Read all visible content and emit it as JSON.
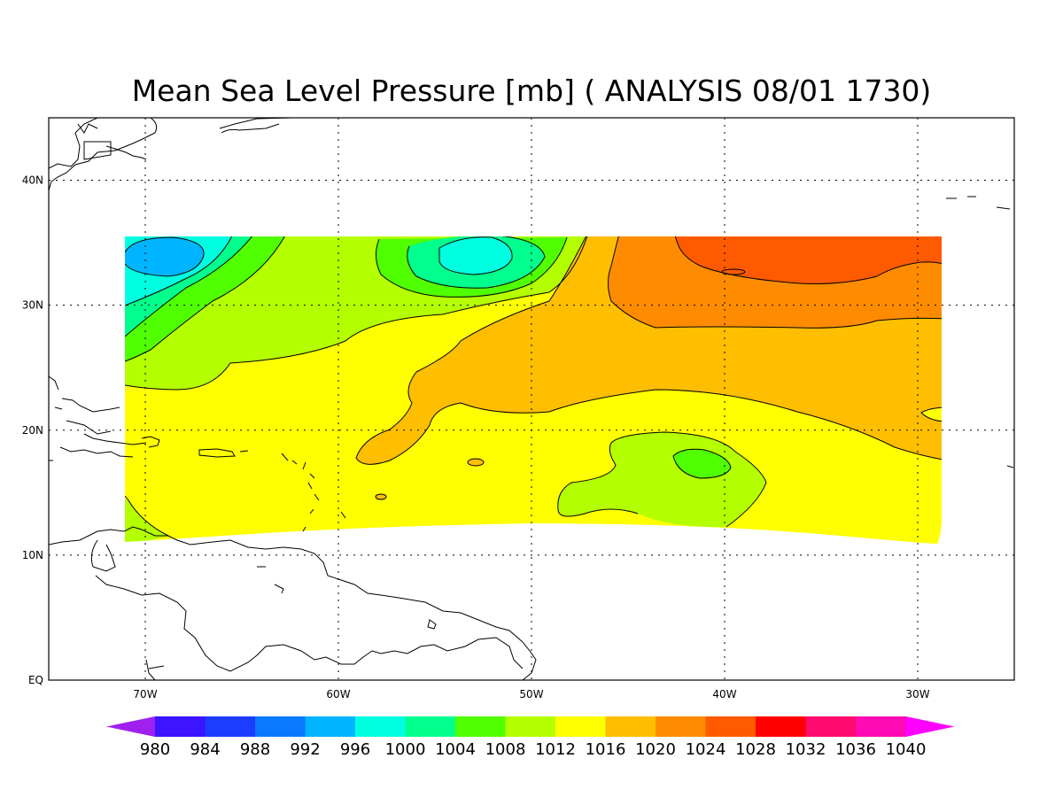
{
  "title": "Mean Sea Level Pressure [mb] ( ANALYSIS 08/01 1730)",
  "map": {
    "lon_range": [
      -75,
      -25
    ],
    "lat_range": [
      0,
      45
    ],
    "x_ticks": [
      {
        "lon": -70,
        "label": "70W"
      },
      {
        "lon": -60,
        "label": "60W"
      },
      {
        "lon": -50,
        "label": "50W"
      },
      {
        "lon": -40,
        "label": "40W"
      },
      {
        "lon": -30,
        "label": "30W"
      }
    ],
    "y_ticks": [
      {
        "lat": 0,
        "label": "EQ"
      },
      {
        "lat": 10,
        "label": "10N"
      },
      {
        "lat": 20,
        "label": "20N"
      },
      {
        "lat": 30,
        "label": "30N"
      },
      {
        "lat": 40,
        "label": "40N"
      }
    ],
    "grid": "dotted",
    "data_domain_lon": [
      -71,
      -29
    ],
    "data_domain_lat": [
      11,
      35.5
    ]
  },
  "colorbar": {
    "levels": [
      "980",
      "984",
      "988",
      "992",
      "996",
      "1000",
      "1004",
      "1008",
      "1012",
      "1016",
      "1020",
      "1024",
      "1028",
      "1032",
      "1036",
      "1040"
    ],
    "colors": [
      "#a020f0",
      "#3c14ff",
      "#1e3cff",
      "#0a78ff",
      "#00b4ff",
      "#00ffe0",
      "#00ff8c",
      "#50ff00",
      "#b4ff00",
      "#ffff00",
      "#ffbe00",
      "#ff8c00",
      "#ff5a00",
      "#ff0000",
      "#ff0a6e",
      "#ff0ab4",
      "#ff00ff"
    ]
  },
  "features": [
    {
      "name": "low-pressure-cell-northwest",
      "value_band": "996-1000"
    },
    {
      "name": "low-pressure-cell-north-central",
      "value_band": "1000-1004"
    },
    {
      "name": "high-pressure-northeast",
      "value_band": "1024-1028"
    },
    {
      "name": "low-pressure-cell-southeast",
      "value_band": "1004-1008"
    }
  ]
}
